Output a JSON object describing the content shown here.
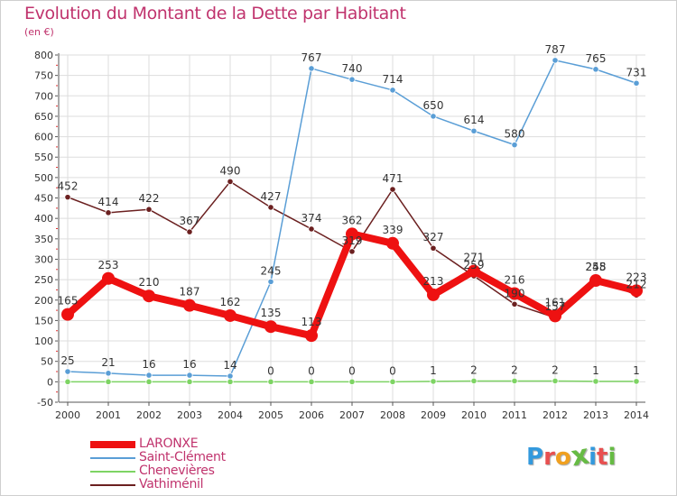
{
  "title": "Evolution du Montant de la Dette par Habitant",
  "subtitle": "(en €)",
  "logo": "Proxiti",
  "colors": {
    "title": "#c0336d",
    "grid": "#dddddd",
    "axis": "#555555",
    "tick_red": "#e03030"
  },
  "chart_data": {
    "type": "line",
    "x": [
      "2000",
      "2001",
      "2002",
      "2003",
      "2004",
      "2005",
      "2006",
      "2007",
      "2008",
      "2009",
      "2010",
      "2011",
      "2012",
      "2013",
      "2014"
    ],
    "ylim": [
      -50,
      800
    ],
    "yticks": [
      -50,
      0,
      50,
      100,
      150,
      200,
      250,
      300,
      350,
      400,
      450,
      500,
      550,
      600,
      650,
      700,
      750,
      800
    ],
    "grid": true,
    "legend_position": "bottom-left",
    "series": [
      {
        "name": "Vathiménil",
        "color": "#6b2020",
        "values": [
          452,
          414,
          422,
          367,
          490,
          427,
          374,
          319,
          471,
          327,
          259,
          190,
          157,
          255,
          212
        ],
        "labels": [
          "452",
          "414",
          "422",
          "367",
          "490",
          "427",
          "374",
          "319",
          "471",
          "327",
          "259",
          "190",
          "157",
          "255",
          "212"
        ]
      },
      {
        "name": "Saint-Clément",
        "color": "#5a9ed6",
        "values": [
          25,
          21,
          16,
          16,
          14,
          245,
          767,
          740,
          714,
          650,
          614,
          580,
          787,
          765,
          731
        ],
        "labels": [
          "25",
          "21",
          "16",
          "16",
          "14",
          "245",
          "767",
          "740",
          "714",
          "650",
          "614",
          "580",
          "787",
          "765",
          "731"
        ]
      },
      {
        "name": "Chenevières",
        "color": "#7ed464",
        "values": [
          0,
          0,
          0,
          0,
          0,
          0,
          0,
          0,
          0,
          1,
          2,
          2,
          2,
          1,
          1
        ],
        "labels": [
          "",
          "",
          "",
          "",
          "",
          "0",
          "0",
          "0",
          "0",
          "1",
          "2",
          "2",
          "2",
          "1",
          "1"
        ]
      },
      {
        "name": "LARONXE",
        "color": "#ee1111",
        "values": [
          165,
          253,
          210,
          187,
          162,
          135,
          113,
          362,
          339,
          213,
          271,
          216,
          161,
          248,
          223
        ],
        "labels": [
          "165",
          "253",
          "210",
          "187",
          "162",
          "135",
          "113",
          "362",
          "339",
          "213",
          "271",
          "216",
          "161",
          "248",
          "223"
        ]
      }
    ]
  },
  "legend": [
    {
      "name": "LARONXE",
      "color": "#ee1111",
      "thickness": 8
    },
    {
      "name": "Saint-Clément",
      "color": "#5a9ed6",
      "thickness": 2
    },
    {
      "name": "Chenevières",
      "color": "#7ed464",
      "thickness": 2
    },
    {
      "name": "Vathiménil",
      "color": "#6b2020",
      "thickness": 2
    }
  ],
  "logo_colors": [
    "#3399dd",
    "#e85050",
    "#f0a020",
    "#66bb44",
    "#3399dd",
    "#e85050",
    "#66bb44"
  ]
}
